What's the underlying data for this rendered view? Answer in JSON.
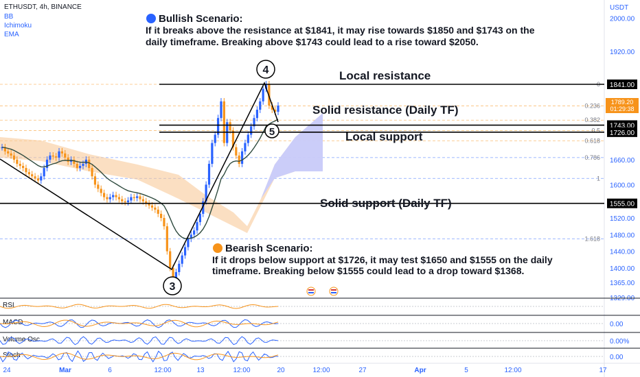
{
  "header": {
    "symbol_line": "ETHUSDT, 4h, BINANCE",
    "indicators": [
      "BB",
      "Ichimoku",
      "EMA"
    ]
  },
  "colors": {
    "up": "#2962ff",
    "down": "#f7931a",
    "resistance": "#000000",
    "grid": "#d1d4dc",
    "price_axis_text": "#2962ff",
    "cloud_bull": "#c5cbff",
    "cloud_bear": "#f9c99a"
  },
  "annotations": {
    "bullish_title": "Bullish Scenario:",
    "bullish_body_1": "If it breaks above the resistance at $1841, it may rise towards $1850 and $1743 on the",
    "bullish_body_2": "daily timeframe. Breaking above $1743 could lead to a rise toward $2050.",
    "bearish_title": "Bearish Scenario:",
    "bearish_body_1": "If it drops below support at $1726, it may test $1650 and $1555 on the daily",
    "bearish_body_2": "timeframe. Breaking below $1555 could lead to a drop toward $1368.",
    "local_resistance": "Local resistance",
    "solid_resistance": "Solid resistance (Daily TF)",
    "local_support": "Local support",
    "solid_support": "Solid support (Daily TF)",
    "wave_3": "3",
    "wave_4": "4",
    "wave_5": "5"
  },
  "chart_data": {
    "type": "candlestick",
    "y_unit": "USDT",
    "y_ticks": [
      2000,
      1920,
      1841,
      1743,
      1726,
      1660,
      1600,
      1555,
      1520,
      1480,
      1440,
      1400,
      1365,
      1329
    ],
    "x_ticks": [
      "24",
      "Mar",
      "6",
      "12:00",
      "13",
      "12:00",
      "20",
      "12:00",
      "27",
      "Apr",
      "5",
      "12:00",
      "17"
    ],
    "levels": [
      {
        "label": "Local resistance",
        "value": 1841
      },
      {
        "label": "Solid resistance (Daily TF)",
        "value": 1743
      },
      {
        "label": "Local support",
        "value": 1726
      },
      {
        "label": "Solid support (Daily TF)",
        "value": 1555
      }
    ],
    "current_price": {
      "value": "1789.20",
      "countdown": "01:29:38"
    },
    "fib_levels": [
      {
        "label": "0",
        "value": 1841
      },
      {
        "label": "0.236",
        "value": 1789
      },
      {
        "label": "0.382",
        "value": 1755
      },
      {
        "label": "0.5",
        "value": 1730
      },
      {
        "label": "0.618",
        "value": 1705
      },
      {
        "label": "0.786",
        "value": 1665
      },
      {
        "label": "1",
        "value": 1615
      },
      {
        "label": "1.618",
        "value": 1470
      }
    ],
    "candles_close": [
      1690,
      1680,
      1675,
      1670,
      1660,
      1650,
      1645,
      1640,
      1630,
      1625,
      1620,
      1615,
      1610,
      1620,
      1640,
      1660,
      1670,
      1668,
      1665,
      1680,
      1675,
      1665,
      1655,
      1660,
      1650,
      1640,
      1645,
      1650,
      1660,
      1640,
      1620,
      1600,
      1590,
      1580,
      1570,
      1565,
      1570,
      1575,
      1570,
      1565,
      1560,
      1558,
      1562,
      1570,
      1568,
      1572,
      1565,
      1560,
      1555,
      1550,
      1545,
      1540,
      1530,
      1520,
      1500,
      1440,
      1400,
      1375,
      1390,
      1410,
      1430,
      1450,
      1470,
      1480,
      1490,
      1510,
      1530,
      1560,
      1600,
      1650,
      1700,
      1720,
      1760,
      1800,
      1700,
      1750,
      1730,
      1690,
      1670,
      1650,
      1680,
      1700,
      1720,
      1740,
      1760,
      1780,
      1800,
      1830,
      1841,
      1790,
      1780,
      1775,
      1790
    ],
    "waves": [
      {
        "label": "3",
        "value": 1369
      },
      {
        "label": "4",
        "value": 1841
      },
      {
        "label": "5",
        "value": 1726
      }
    ],
    "sub_panes": [
      {
        "name": "RSI",
        "value_label": ""
      },
      {
        "name": "MACD",
        "value_label": "0.00"
      },
      {
        "name": "Volume Osc",
        "value_label": "0.00%"
      },
      {
        "name": "Stoch",
        "value_label": "0.00"
      }
    ]
  }
}
